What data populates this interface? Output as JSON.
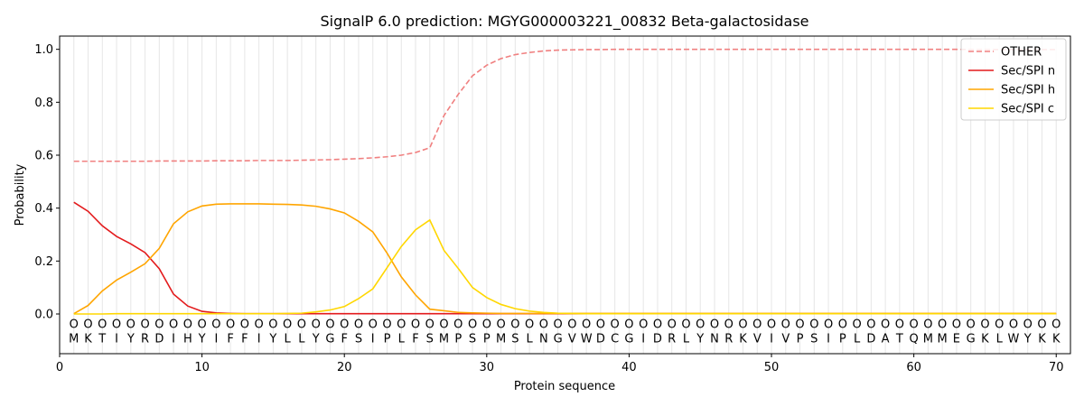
{
  "chart_data": {
    "type": "line",
    "title": "SignalP 6.0 prediction: MGYG000003221_00832 Beta-galactosidase",
    "xlabel": "Protein sequence",
    "ylabel": "Probability",
    "xlim": [
      0,
      71
    ],
    "ylim": [
      -0.15,
      1.05
    ],
    "xticks": [
      0,
      10,
      20,
      30,
      40,
      50,
      60,
      70
    ],
    "yticks": [
      0.0,
      0.2,
      0.4,
      0.6,
      0.8,
      1.0
    ],
    "ytick_labels": [
      "0.0",
      "0.2",
      "0.4",
      "0.6",
      "0.8",
      "1.0"
    ],
    "grid": "vertical lines at each residue",
    "legend_position": "top-right",
    "sequence": [
      "M",
      "K",
      "T",
      "I",
      "Y",
      "R",
      "D",
      "I",
      "H",
      "Y",
      "I",
      "F",
      "F",
      "I",
      "Y",
      "L",
      "L",
      "Y",
      "G",
      "F",
      "S",
      "I",
      "P",
      "L",
      "F",
      "S",
      "M",
      "P",
      "S",
      "P",
      "M",
      "S",
      "L",
      "N",
      "G",
      "V",
      "W",
      "D",
      "C",
      "G",
      "I",
      "D",
      "R",
      "L",
      "Y",
      "N",
      "R",
      "K",
      "V",
      "I",
      "V",
      "P",
      "S",
      "I",
      "P",
      "L",
      "D",
      "A",
      "T",
      "Q",
      "M",
      "M",
      "E",
      "G",
      "K",
      "L",
      "W",
      "Y",
      "K",
      "K"
    ],
    "region_labels": [
      "O",
      "O",
      "O",
      "O",
      "O",
      "O",
      "O",
      "O",
      "O",
      "O",
      "O",
      "O",
      "O",
      "O",
      "O",
      "O",
      "O",
      "O",
      "O",
      "O",
      "O",
      "O",
      "O",
      "O",
      "O",
      "O",
      "O",
      "O",
      "O",
      "O",
      "O",
      "O",
      "O",
      "O",
      "O",
      "O",
      "O",
      "O",
      "O",
      "O",
      "O",
      "O",
      "O",
      "O",
      "O",
      "O",
      "O",
      "O",
      "O",
      "O",
      "O",
      "O",
      "O",
      "O",
      "O",
      "O",
      "O",
      "O",
      "O",
      "O",
      "O",
      "O",
      "O",
      "O",
      "O",
      "O",
      "O",
      "O",
      "O",
      "O"
    ],
    "series": [
      {
        "name": "OTHER",
        "color": "#f08080",
        "dash": "dashed",
        "values": [
          0.577,
          0.577,
          0.577,
          0.577,
          0.577,
          0.577,
          0.578,
          0.578,
          0.578,
          0.578,
          0.579,
          0.579,
          0.579,
          0.58,
          0.58,
          0.58,
          0.581,
          0.582,
          0.583,
          0.585,
          0.587,
          0.59,
          0.594,
          0.6,
          0.61,
          0.628,
          0.75,
          0.83,
          0.9,
          0.94,
          0.965,
          0.98,
          0.988,
          0.994,
          0.997,
          0.998,
          0.999,
          0.999,
          1.0,
          1.0,
          1.0,
          1.0,
          1.0,
          1.0,
          1.0,
          1.0,
          1.0,
          1.0,
          1.0,
          1.0,
          1.0,
          1.0,
          1.0,
          1.0,
          1.0,
          1.0,
          1.0,
          1.0,
          1.0,
          1.0,
          1.0,
          1.0,
          1.0,
          0.999,
          0.999,
          0.999,
          0.999,
          0.999,
          0.999,
          0.999
        ]
      },
      {
        "name": "Sec/SPI n",
        "color": "#e31a1c",
        "dash": "solid",
        "values": [
          0.422,
          0.388,
          0.333,
          0.293,
          0.265,
          0.232,
          0.171,
          0.075,
          0.03,
          0.01,
          0.004,
          0.002,
          0.001,
          0.001,
          0.001,
          0.001,
          0.001,
          0.001,
          0.001,
          0.001,
          0.001,
          0.001,
          0.001,
          0.001,
          0.001,
          0.001,
          0.001,
          0.001,
          0.001,
          0.001,
          0.001,
          0.001,
          0.001,
          0.001,
          0.001,
          0.001,
          0.001,
          0.001,
          0.001,
          0.001,
          0.001,
          0.001,
          0.001,
          0.001,
          0.001,
          0.001,
          0.001,
          0.001,
          0.001,
          0.001,
          0.001,
          0.001,
          0.001,
          0.001,
          0.001,
          0.001,
          0.001,
          0.001,
          0.001,
          0.001,
          0.001,
          0.001,
          0.001,
          0.001,
          0.001,
          0.001,
          0.001,
          0.001,
          0.001,
          0.001
        ]
      },
      {
        "name": "Sec/SPI h",
        "color": "#ffa500",
        "dash": "solid",
        "values": [
          0.001,
          0.032,
          0.087,
          0.128,
          0.158,
          0.19,
          0.248,
          0.341,
          0.386,
          0.408,
          0.415,
          0.416,
          0.416,
          0.416,
          0.415,
          0.414,
          0.412,
          0.407,
          0.397,
          0.382,
          0.35,
          0.31,
          0.23,
          0.14,
          0.072,
          0.018,
          0.012,
          0.006,
          0.004,
          0.003,
          0.002,
          0.002,
          0.002,
          0.002,
          0.002,
          0.002,
          0.002,
          0.002,
          0.002,
          0.002,
          0.002,
          0.002,
          0.002,
          0.002,
          0.002,
          0.002,
          0.002,
          0.002,
          0.002,
          0.002,
          0.002,
          0.002,
          0.002,
          0.002,
          0.002,
          0.002,
          0.002,
          0.002,
          0.002,
          0.002,
          0.002,
          0.002,
          0.002,
          0.002,
          0.002,
          0.002,
          0.002,
          0.002,
          0.002,
          0.002
        ]
      },
      {
        "name": "Sec/SPI c",
        "color": "#ffd700",
        "dash": "solid",
        "values": [
          0.0,
          0.0,
          0.0,
          0.001,
          0.001,
          0.001,
          0.001,
          0.001,
          0.001,
          0.001,
          0.001,
          0.001,
          0.001,
          0.001,
          0.001,
          0.002,
          0.003,
          0.008,
          0.015,
          0.028,
          0.058,
          0.095,
          0.175,
          0.255,
          0.318,
          0.355,
          0.24,
          0.172,
          0.1,
          0.062,
          0.036,
          0.02,
          0.011,
          0.006,
          0.003,
          0.002,
          0.001,
          0.001,
          0.001,
          0.001,
          0.001,
          0.001,
          0.001,
          0.001,
          0.001,
          0.001,
          0.001,
          0.001,
          0.001,
          0.001,
          0.001,
          0.001,
          0.001,
          0.001,
          0.001,
          0.001,
          0.001,
          0.001,
          0.001,
          0.001,
          0.001,
          0.001,
          0.001,
          0.001,
          0.001,
          0.001,
          0.001,
          0.001,
          0.001,
          0.001
        ]
      }
    ]
  }
}
